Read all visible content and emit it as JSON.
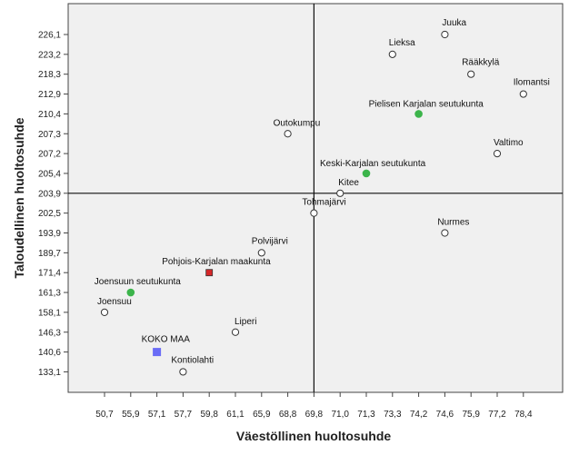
{
  "chart_data": {
    "type": "scatter",
    "title": "",
    "xlabel": "Väestöllinen huoltosuhde",
    "ylabel": "Taloudellinen huoltosuhde",
    "grid": false,
    "x_ticks": [
      "50,7",
      "55,9",
      "57,1",
      "57,7",
      "59,8",
      "61,1",
      "65,9",
      "68,8",
      "69,8",
      "71,0",
      "71,3",
      "73,3",
      "74,2",
      "74,6",
      "75,9",
      "77,2",
      "78,4"
    ],
    "y_ticks": [
      "226,1",
      "223,2",
      "218,3",
      "212,9",
      "210,4",
      "207,3",
      "207,2",
      "205,4",
      "203,9",
      "202,5",
      "193,9",
      "189,7",
      "171,4",
      "161,3",
      "158,1",
      "146,3",
      "140,6",
      "133,1"
    ],
    "reference_lines": {
      "x": "69,8",
      "y": "203,9"
    },
    "points": [
      {
        "label": "Juuka",
        "x": "74,6",
        "y": "226,1",
        "marker": "open-circle"
      },
      {
        "label": "Lieksa",
        "x": "73,3",
        "y": "223,2",
        "marker": "open-circle"
      },
      {
        "label": "Rääkkylä",
        "x": "75,9",
        "y": "218,3",
        "marker": "open-circle"
      },
      {
        "label": "Ilomantsi",
        "x": "78,4",
        "y": "212,9",
        "marker": "open-circle"
      },
      {
        "label": "Pielisen Karjalan seutukunta",
        "x": "74,2",
        "y": "210,4",
        "marker": "green-dot"
      },
      {
        "label": "Outokumpu",
        "x": "68,8",
        "y": "207,3",
        "marker": "open-circle"
      },
      {
        "label": "Valtimo",
        "x": "77,2",
        "y": "207,2",
        "marker": "open-circle"
      },
      {
        "label": "Keski-Karjalan seutukunta",
        "x": "71,3",
        "y": "205,4",
        "marker": "green-dot"
      },
      {
        "label": "Kitee",
        "x": "71,0",
        "y": "203,9",
        "marker": "open-circle"
      },
      {
        "label": "Tohmajärvi",
        "x": "69,8",
        "y": "202,5",
        "marker": "open-circle"
      },
      {
        "label": "Nurmes",
        "x": "74,6",
        "y": "193,9",
        "marker": "open-circle"
      },
      {
        "label": "Polvijärvi",
        "x": "65,9",
        "y": "189,7",
        "marker": "open-circle"
      },
      {
        "label": "Pohjois-Karjalan maakunta",
        "x": "59,8",
        "y": "171,4",
        "marker": "red-square"
      },
      {
        "label": "Joensuun seutukunta",
        "x": "55,9",
        "y": "161,3",
        "marker": "green-dot"
      },
      {
        "label": "Joensuu",
        "x": "50,7",
        "y": "158,1",
        "marker": "open-circle"
      },
      {
        "label": "Liperi",
        "x": "61,1",
        "y": "146,3",
        "marker": "open-circle"
      },
      {
        "label": "KOKO MAA",
        "x": "57,1",
        "y": "140,6",
        "marker": "blue-square"
      },
      {
        "label": "Kontiolahti",
        "x": "57,7",
        "y": "133,1",
        "marker": "open-circle"
      }
    ]
  },
  "colors": {
    "plot_background": "#f0f0f0",
    "green_dot": "#3cb44b",
    "red_square": "#d62728",
    "blue_square": "#6a6cf6",
    "open_circle_stroke": "#333333"
  }
}
